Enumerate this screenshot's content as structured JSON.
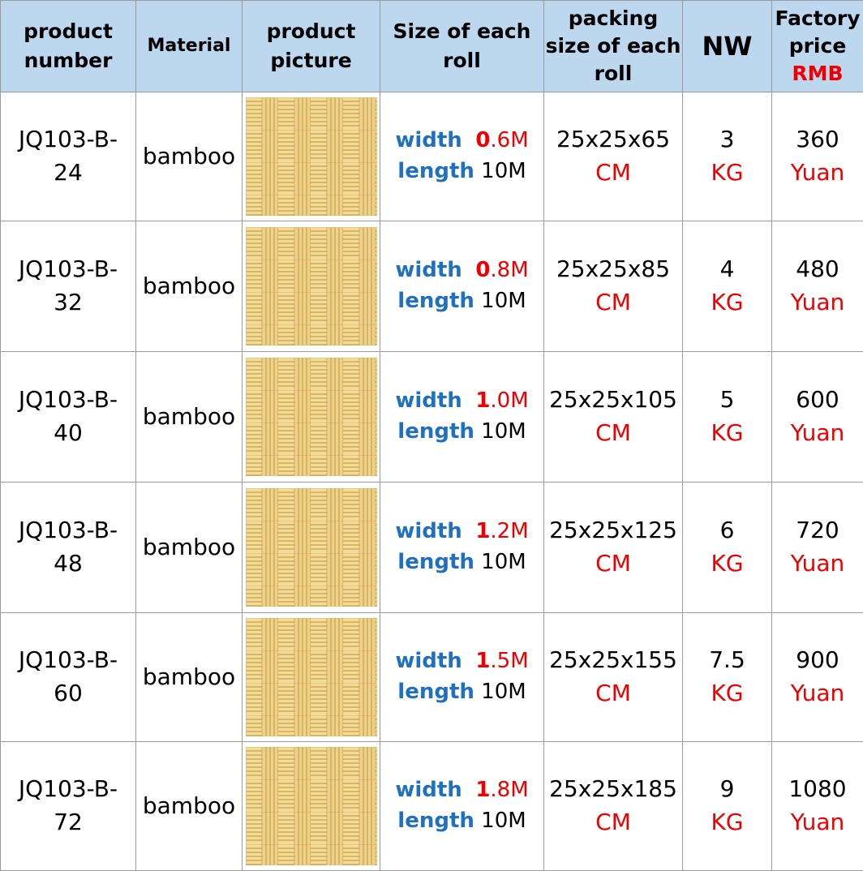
{
  "colors": {
    "header_bg": "#bdd7ee",
    "accent_red": "#ee0000",
    "accent_blue": "#1f70c1",
    "weave_light": "#f3d78f",
    "weave_dark": "#c49a3c"
  },
  "header": {
    "product_number": [
      "product",
      "number"
    ],
    "material": "Material",
    "product_picture": [
      "product",
      "picture"
    ],
    "size_of_roll": [
      "Size of each",
      "roll"
    ],
    "packing_size": [
      "packing",
      "size of each",
      "roll"
    ],
    "nw": "NW",
    "factory_price": [
      "Factory",
      "price"
    ],
    "currency": "RMB"
  },
  "labels": {
    "width": "width",
    "length": "length",
    "cm": "CM",
    "kg": "KG",
    "yuan": "Yuan"
  },
  "rows": [
    {
      "code": [
        "JQ103-B-",
        "24"
      ],
      "material": "bamboo",
      "width_int": "0",
      "width_rest": ".6M",
      "length": "10M",
      "packing": "25x25x65",
      "nw": "3",
      "price": "360"
    },
    {
      "code": [
        "JQ103-B-",
        "32"
      ],
      "material": "bamboo",
      "width_int": "0",
      "width_rest": ".8M",
      "length": "10M",
      "packing": "25x25x85",
      "nw": "4",
      "price": "480"
    },
    {
      "code": [
        "JQ103-B-",
        "40"
      ],
      "material": "bamboo",
      "width_int": "1",
      "width_rest": ".0M",
      "length": "10M",
      "packing": "25x25x105",
      "nw": "5",
      "price": "600"
    },
    {
      "code": [
        "JQ103-B-",
        "48"
      ],
      "material": "bamboo",
      "width_int": "1",
      "width_rest": ".2M",
      "length": "10M",
      "packing": "25x25x125",
      "nw": "6",
      "price": "720"
    },
    {
      "code": [
        "JQ103-B-",
        "60"
      ],
      "material": "bamboo",
      "width_int": "1",
      "width_rest": ".5M",
      "length": "10M",
      "packing": "25x25x155",
      "nw": "7.5",
      "price": "900"
    },
    {
      "code": [
        "JQ103-B-",
        "72"
      ],
      "material": "bamboo",
      "width_int": "1",
      "width_rest": ".8M",
      "length": "10M",
      "packing": "25x25x185",
      "nw": "9",
      "price": "1080"
    }
  ]
}
